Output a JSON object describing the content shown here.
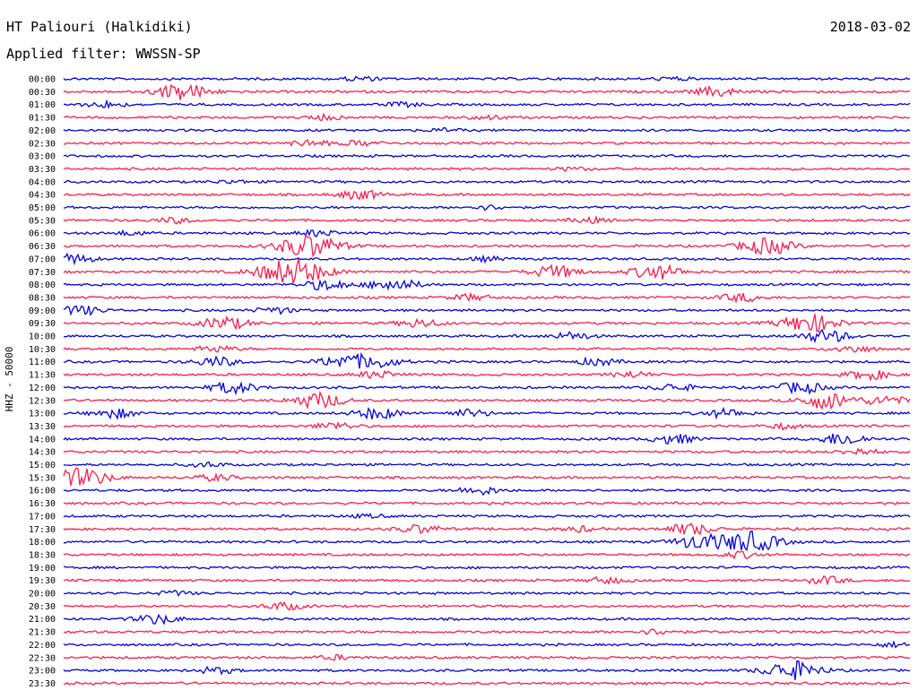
{
  "header": {
    "station": "HT Paliouri (Halkidiki)",
    "date": "2018-03-02",
    "filter_prefix": "Applied filter:",
    "filter_name": "WWSSN-SP"
  },
  "colors": {
    "line_a": "#0000e6",
    "line_b": "#ff1a4b",
    "text": "#000000",
    "background": "#ffffff"
  },
  "chart_data": {
    "type": "line",
    "ylabel": "HHZ - 50000",
    "grid": false,
    "rows": [
      {
        "time": "00:00",
        "color": "blue",
        "bursts": [
          {
            "t": 0.35,
            "amp": 0.2
          },
          {
            "t": 0.72,
            "amp": 0.15
          }
        ]
      },
      {
        "time": "00:30",
        "color": "red",
        "bursts": [
          {
            "t": 0.14,
            "amp": 0.8
          },
          {
            "t": 0.77,
            "amp": 0.45
          }
        ]
      },
      {
        "time": "01:00",
        "color": "blue",
        "bursts": [
          {
            "t": 0.05,
            "amp": 0.3
          },
          {
            "t": 0.4,
            "amp": 0.2
          }
        ]
      },
      {
        "time": "01:30",
        "color": "red",
        "bursts": [
          {
            "t": 0.31,
            "amp": 0.25
          },
          {
            "t": 0.5,
            "amp": 0.2
          }
        ]
      },
      {
        "time": "02:00",
        "color": "blue",
        "bursts": [
          {
            "t": 0.45,
            "amp": 0.15
          }
        ]
      },
      {
        "time": "02:30",
        "color": "red",
        "bursts": [
          {
            "t": 0.29,
            "amp": 0.3
          },
          {
            "t": 0.35,
            "amp": 0.25
          }
        ]
      },
      {
        "time": "03:00",
        "color": "blue",
        "bursts": []
      },
      {
        "time": "03:30",
        "color": "red",
        "bursts": [
          {
            "t": 0.6,
            "amp": 0.15
          }
        ]
      },
      {
        "time": "04:00",
        "color": "blue",
        "bursts": [
          {
            "t": 0.2,
            "amp": 0.15
          }
        ]
      },
      {
        "time": "04:30",
        "color": "red",
        "bursts": [
          {
            "t": 0.35,
            "amp": 0.45
          }
        ]
      },
      {
        "time": "05:00",
        "color": "blue",
        "bursts": [
          {
            "t": 0.5,
            "amp": 0.2
          }
        ]
      },
      {
        "time": "05:30",
        "color": "red",
        "bursts": [
          {
            "t": 0.13,
            "amp": 0.25
          },
          {
            "t": 0.62,
            "amp": 0.25
          }
        ]
      },
      {
        "time": "06:00",
        "color": "blue",
        "bursts": [
          {
            "t": 0.08,
            "amp": 0.2
          },
          {
            "t": 0.3,
            "amp": 0.3
          }
        ]
      },
      {
        "time": "06:30",
        "color": "red",
        "bursts": [
          {
            "t": 0.29,
            "amp": 1.1
          },
          {
            "t": 0.83,
            "amp": 0.8
          }
        ]
      },
      {
        "time": "07:00",
        "color": "blue",
        "bursts": [
          {
            "t": 0.01,
            "amp": 0.45
          },
          {
            "t": 0.5,
            "amp": 0.2
          }
        ]
      },
      {
        "time": "07:30",
        "color": "red",
        "bursts": [
          {
            "t": 0.27,
            "amp": 1.3
          },
          {
            "t": 0.58,
            "amp": 0.6
          },
          {
            "t": 0.7,
            "amp": 0.7
          }
        ]
      },
      {
        "time": "08:00",
        "color": "blue",
        "bursts": [
          {
            "t": 0.31,
            "amp": 0.5
          },
          {
            "t": 0.39,
            "amp": 0.6
          }
        ]
      },
      {
        "time": "08:30",
        "color": "red",
        "bursts": [
          {
            "t": 0.48,
            "amp": 0.3
          },
          {
            "t": 0.8,
            "amp": 0.4
          }
        ]
      },
      {
        "time": "09:00",
        "color": "blue",
        "bursts": [
          {
            "t": 0.02,
            "amp": 0.45
          },
          {
            "t": 0.25,
            "amp": 0.3
          }
        ]
      },
      {
        "time": "09:30",
        "color": "red",
        "bursts": [
          {
            "t": 0.19,
            "amp": 0.6
          },
          {
            "t": 0.42,
            "amp": 0.4
          },
          {
            "t": 0.88,
            "amp": 0.9
          }
        ]
      },
      {
        "time": "10:00",
        "color": "blue",
        "bursts": [
          {
            "t": 0.6,
            "amp": 0.35
          },
          {
            "t": 0.9,
            "amp": 0.6
          }
        ]
      },
      {
        "time": "10:30",
        "color": "red",
        "bursts": [
          {
            "t": 0.18,
            "amp": 0.3
          },
          {
            "t": 0.93,
            "amp": 0.35
          }
        ]
      },
      {
        "time": "11:00",
        "color": "blue",
        "bursts": [
          {
            "t": 0.18,
            "amp": 0.45
          },
          {
            "t": 0.33,
            "amp": 0.6
          },
          {
            "t": 0.37,
            "amp": 0.55
          },
          {
            "t": 0.63,
            "amp": 0.35
          }
        ]
      },
      {
        "time": "11:30",
        "color": "red",
        "bursts": [
          {
            "t": 0.37,
            "amp": 0.35
          },
          {
            "t": 0.67,
            "amp": 0.3
          },
          {
            "t": 0.95,
            "amp": 0.45
          }
        ]
      },
      {
        "time": "12:00",
        "color": "blue",
        "bursts": [
          {
            "t": 0.2,
            "amp": 0.55
          },
          {
            "t": 0.72,
            "amp": 0.35
          },
          {
            "t": 0.87,
            "amp": 0.55
          }
        ]
      },
      {
        "time": "12:30",
        "color": "red",
        "bursts": [
          {
            "t": 0.3,
            "amp": 0.75
          },
          {
            "t": 0.9,
            "amp": 0.8
          },
          {
            "t": 0.97,
            "amp": 0.45
          }
        ]
      },
      {
        "time": "13:00",
        "color": "blue",
        "bursts": [
          {
            "t": 0.06,
            "amp": 0.45
          },
          {
            "t": 0.37,
            "amp": 0.55
          },
          {
            "t": 0.48,
            "amp": 0.35
          },
          {
            "t": 0.78,
            "amp": 0.4
          }
        ]
      },
      {
        "time": "13:30",
        "color": "red",
        "bursts": [
          {
            "t": 0.32,
            "amp": 0.35
          },
          {
            "t": 0.85,
            "amp": 0.25
          }
        ]
      },
      {
        "time": "14:00",
        "color": "blue",
        "bursts": [
          {
            "t": 0.72,
            "amp": 0.45
          },
          {
            "t": 0.92,
            "amp": 0.6
          }
        ]
      },
      {
        "time": "14:30",
        "color": "red",
        "bursts": [
          {
            "t": 0.94,
            "amp": 0.3
          }
        ]
      },
      {
        "time": "15:00",
        "color": "blue",
        "bursts": [
          {
            "t": 0.17,
            "amp": 0.2
          }
        ]
      },
      {
        "time": "15:30",
        "color": "red",
        "bursts": [
          {
            "t": 0.02,
            "amp": 0.9
          },
          {
            "t": 0.18,
            "amp": 0.3
          }
        ]
      },
      {
        "time": "16:00",
        "color": "blue",
        "bursts": [
          {
            "t": 0.49,
            "amp": 0.4
          }
        ]
      },
      {
        "time": "16:30",
        "color": "red",
        "bursts": []
      },
      {
        "time": "17:00",
        "color": "blue",
        "bursts": [
          {
            "t": 0.36,
            "amp": 0.15
          }
        ]
      },
      {
        "time": "17:30",
        "color": "red",
        "bursts": [
          {
            "t": 0.42,
            "amp": 0.4
          },
          {
            "t": 0.61,
            "amp": 0.25
          },
          {
            "t": 0.74,
            "amp": 0.55
          }
        ]
      },
      {
        "time": "18:00",
        "color": "blue",
        "bursts": [
          {
            "t": 0.75,
            "amp": 0.7
          },
          {
            "t": 0.81,
            "amp": 1.0
          }
        ]
      },
      {
        "time": "18:30",
        "color": "red",
        "bursts": [
          {
            "t": 0.8,
            "amp": 0.3
          }
        ]
      },
      {
        "time": "19:00",
        "color": "blue",
        "bursts": []
      },
      {
        "time": "19:30",
        "color": "red",
        "bursts": [
          {
            "t": 0.64,
            "amp": 0.3
          },
          {
            "t": 0.9,
            "amp": 0.35
          }
        ]
      },
      {
        "time": "20:00",
        "color": "blue",
        "bursts": [
          {
            "t": 0.13,
            "amp": 0.2
          }
        ]
      },
      {
        "time": "20:30",
        "color": "red",
        "bursts": [
          {
            "t": 0.26,
            "amp": 0.35
          }
        ]
      },
      {
        "time": "21:00",
        "color": "blue",
        "bursts": [
          {
            "t": 0.11,
            "amp": 0.45
          }
        ]
      },
      {
        "time": "21:30",
        "color": "red",
        "bursts": [
          {
            "t": 0.7,
            "amp": 0.25
          }
        ]
      },
      {
        "time": "22:00",
        "color": "blue",
        "bursts": [
          {
            "t": 0.98,
            "amp": 0.2
          }
        ]
      },
      {
        "time": "22:30",
        "color": "red",
        "bursts": [
          {
            "t": 0.32,
            "amp": 0.2
          }
        ]
      },
      {
        "time": "23:00",
        "color": "blue",
        "bursts": [
          {
            "t": 0.18,
            "amp": 0.3
          },
          {
            "t": 0.86,
            "amp": 0.9
          }
        ]
      },
      {
        "time": "23:30",
        "color": "red",
        "bursts": []
      }
    ]
  }
}
